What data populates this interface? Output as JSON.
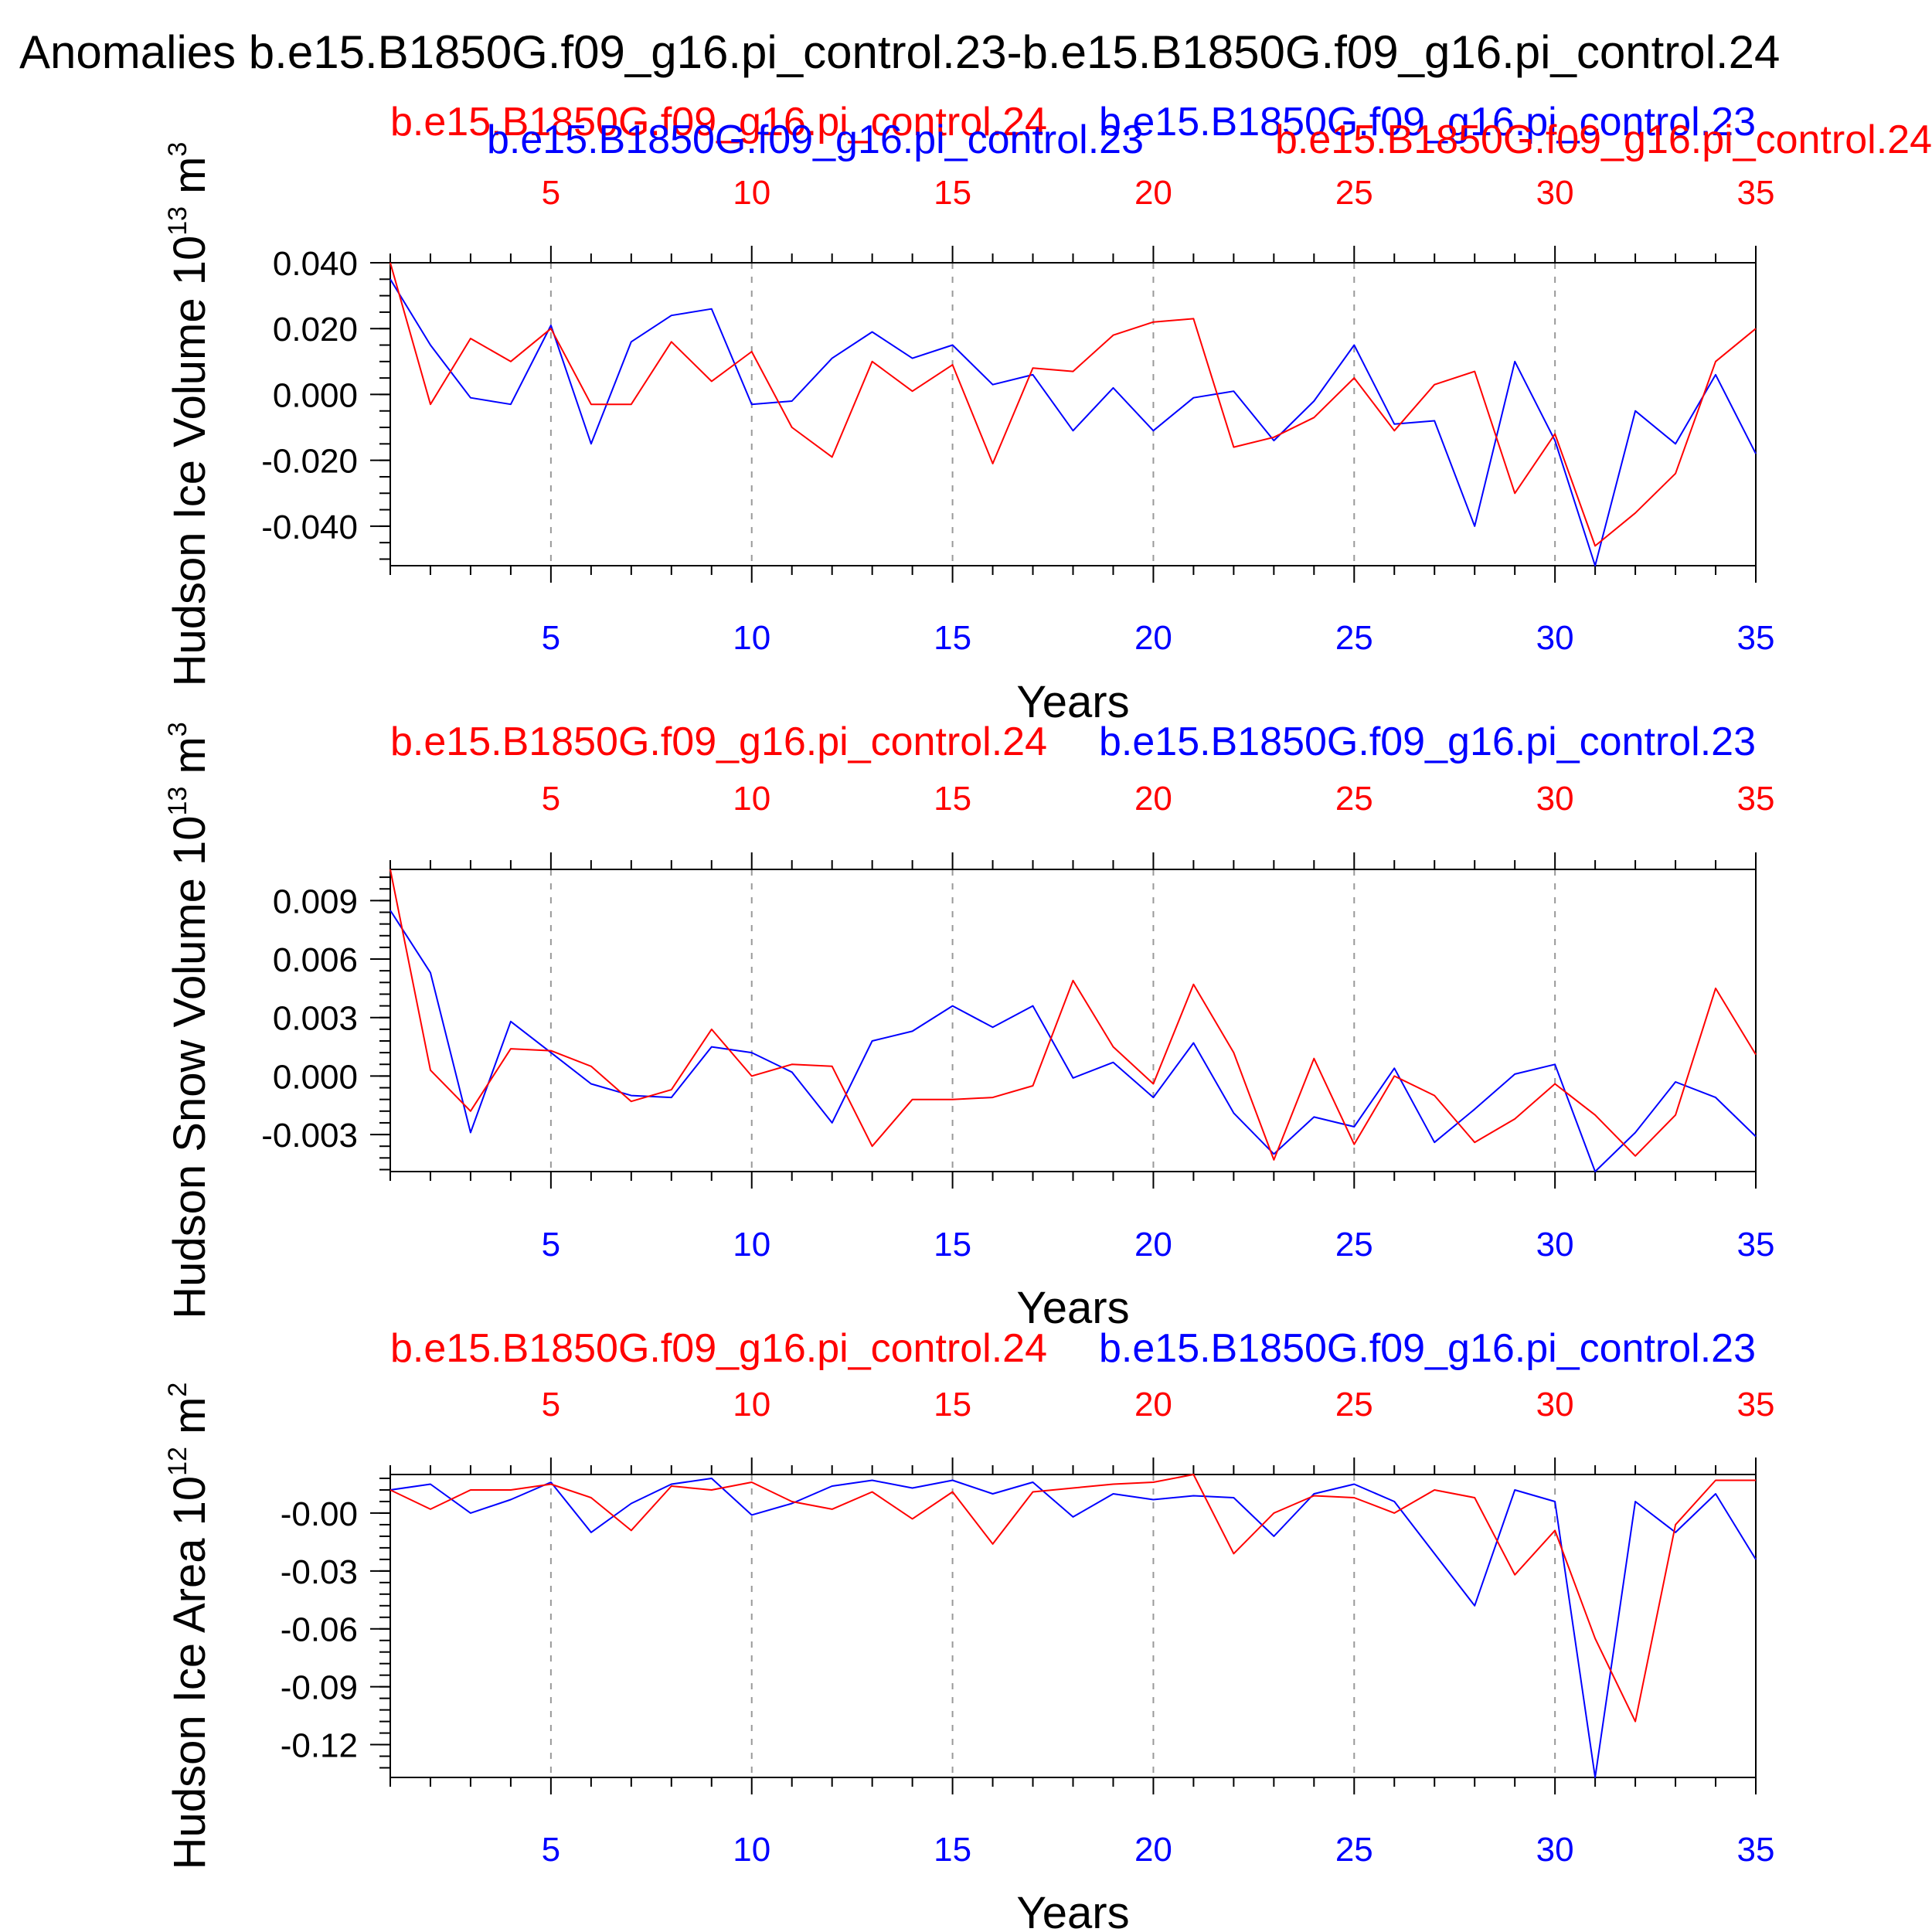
{
  "title": "Anomalies b.e15.B1850G.f09_g16.pi_control.23-b.e15.B1850G.f09_g16.pi_control.24",
  "colors": {
    "run23": "#0000ff",
    "run24": "#ff0000",
    "axis": "#000000",
    "grid": "#999999"
  },
  "chart_data": [
    {
      "type": "line",
      "ylabel": "Hudson Ice Volume 10",
      "ylabel_exp": "13",
      "ylabel_unit": " m",
      "ylabel_unit_exp": "3",
      "xlabel": "Years",
      "xlim": [
        1,
        35
      ],
      "ylim": [
        -0.052,
        0.04
      ],
      "yticks": [
        0.04,
        0.02,
        0.0,
        -0.02,
        -0.04
      ],
      "ytick_labels": [
        "0.040",
        "0.020",
        "0.000",
        "-0.020",
        "-0.040"
      ],
      "yminor_step": 0.005,
      "xticks": [
        5,
        10,
        15,
        20,
        25,
        30,
        35
      ],
      "xtick_labels": [
        "5",
        "10",
        "15",
        "20",
        "25",
        "30",
        "35"
      ],
      "top_labels": [
        "b.e15.B1850G.f09_g16.pi_control.24",
        "b.e15.B1850G.f09_g16.pi_control.23",
        "b.e15.B1850G.f09_g16.pi_control.23",
        "b.e15.B1850G.f09_g16.pi_control.24"
      ],
      "x": [
        1,
        2,
        3,
        4,
        5,
        6,
        7,
        8,
        9,
        10,
        11,
        12,
        13,
        14,
        15,
        16,
        17,
        18,
        19,
        20,
        21,
        22,
        23,
        24,
        25,
        26,
        27,
        28,
        29,
        30,
        31,
        32,
        33,
        34,
        35
      ],
      "series": [
        {
          "name": "b.e15.B1850G.f09_g16.pi_control.23",
          "color": "#0000ff",
          "values": [
            0.035,
            0.015,
            -0.001,
            -0.003,
            0.021,
            -0.015,
            0.016,
            0.024,
            0.026,
            -0.003,
            -0.002,
            0.011,
            0.019,
            0.011,
            0.015,
            0.003,
            0.006,
            -0.011,
            0.002,
            -0.011,
            -0.001,
            0.001,
            -0.014,
            -0.002,
            0.015,
            -0.009,
            -0.008,
            -0.04,
            0.01,
            -0.014,
            -0.052,
            -0.005,
            -0.015,
            0.006,
            -0.018
          ]
        },
        {
          "name": "b.e15.B1850G.f09_g16.pi_control.24",
          "color": "#ff0000",
          "values": [
            0.04,
            -0.003,
            0.017,
            0.01,
            0.02,
            -0.003,
            -0.003,
            0.016,
            0.004,
            0.013,
            -0.01,
            -0.019,
            0.01,
            0.001,
            0.009,
            -0.021,
            0.008,
            0.007,
            0.018,
            0.022,
            0.023,
            -0.016,
            -0.013,
            -0.007,
            0.005,
            -0.011,
            0.003,
            0.007,
            -0.03,
            -0.012,
            -0.046,
            -0.036,
            -0.024,
            0.01,
            0.02
          ]
        }
      ]
    },
    {
      "type": "line",
      "ylabel": "Hudson Snow Volume 10",
      "ylabel_exp": "13",
      "ylabel_unit": " m",
      "ylabel_unit_exp": "3",
      "xlabel": "Years",
      "xlim": [
        1,
        35
      ],
      "ylim": [
        -0.0049,
        0.0106
      ],
      "yticks": [
        0.009,
        0.006,
        0.003,
        0.0,
        -0.003
      ],
      "ytick_labels": [
        "0.009",
        "0.006",
        "0.003",
        "0.000",
        "-0.003"
      ],
      "yminor_step": 0.0006,
      "xticks": [
        5,
        10,
        15,
        20,
        25,
        30,
        35
      ],
      "xtick_labels": [
        "5",
        "10",
        "15",
        "20",
        "25",
        "30",
        "35"
      ],
      "top_labels": [
        "b.e15.B1850G.f09_g16.pi_control.24",
        "b.e15.B1850G.f09_g16.pi_control.23"
      ],
      "x": [
        1,
        2,
        3,
        4,
        5,
        6,
        7,
        8,
        9,
        10,
        11,
        12,
        13,
        14,
        15,
        16,
        17,
        18,
        19,
        20,
        21,
        22,
        23,
        24,
        25,
        26,
        27,
        28,
        29,
        30,
        31,
        32,
        33,
        34,
        35
      ],
      "series": [
        {
          "name": "b.e15.B1850G.f09_g16.pi_control.23",
          "color": "#0000ff",
          "values": [
            0.0085,
            0.0053,
            -0.0029,
            0.0028,
            0.0012,
            -0.0004,
            -0.001,
            -0.0011,
            0.0015,
            0.0012,
            0.0002,
            -0.0024,
            0.0018,
            0.0023,
            0.0036,
            0.0025,
            0.0036,
            -0.0001,
            0.0007,
            -0.0011,
            0.0017,
            -0.0019,
            -0.004,
            -0.0021,
            -0.0026,
            0.0004,
            -0.0034,
            -0.0017,
            0.0001,
            0.0006,
            -0.0049,
            -0.0029,
            -0.0003,
            -0.0011,
            -0.0031
          ]
        },
        {
          "name": "b.e15.B1850G.f09_g16.pi_control.24",
          "color": "#ff0000",
          "values": [
            0.0106,
            0.0003,
            -0.0018,
            0.0014,
            0.0013,
            0.0005,
            -0.0013,
            -0.0007,
            0.0024,
            0.0,
            0.0006,
            0.0005,
            -0.0036,
            -0.0012,
            -0.0012,
            -0.0011,
            -0.0005,
            0.0049,
            0.0015,
            -0.0004,
            0.0047,
            0.0012,
            -0.0043,
            0.0009,
            -0.0035,
            0.0,
            -0.001,
            -0.0034,
            -0.0022,
            -0.0004,
            -0.002,
            -0.0041,
            -0.002,
            0.0045,
            0.0011
          ]
        }
      ]
    },
    {
      "type": "line",
      "ylabel": "Hudson Ice Area 10",
      "ylabel_exp": "12",
      "ylabel_unit": " m",
      "ylabel_unit_exp": "2",
      "xlabel": "Years",
      "xlim": [
        1,
        35
      ],
      "ylim": [
        -0.137,
        0.02
      ],
      "yticks": [
        0.0,
        -0.03,
        -0.06,
        -0.09,
        -0.12
      ],
      "ytick_labels": [
        "-0.00",
        "-0.03",
        "-0.06",
        "-0.09",
        "-0.12"
      ],
      "yminor_step": 0.006,
      "xticks": [
        5,
        10,
        15,
        20,
        25,
        30,
        35
      ],
      "xtick_labels": [
        "5",
        "10",
        "15",
        "20",
        "25",
        "30",
        "35"
      ],
      "top_labels": [
        "b.e15.B1850G.f09_g16.pi_control.24",
        "b.e15.B1850G.f09_g16.pi_control.23"
      ],
      "x": [
        1,
        2,
        3,
        4,
        5,
        6,
        7,
        8,
        9,
        10,
        11,
        12,
        13,
        14,
        15,
        16,
        17,
        18,
        19,
        20,
        21,
        22,
        23,
        24,
        25,
        26,
        27,
        28,
        29,
        30,
        31,
        32,
        33,
        34,
        35
      ],
      "series": [
        {
          "name": "b.e15.B1850G.f09_g16.pi_control.23",
          "color": "#0000ff",
          "values": [
            0.012,
            0.015,
            0.0,
            0.007,
            0.016,
            -0.01,
            0.005,
            0.015,
            0.018,
            -0.001,
            0.005,
            0.014,
            0.017,
            0.013,
            0.017,
            0.01,
            0.016,
            -0.002,
            0.01,
            0.007,
            0.009,
            0.008,
            -0.012,
            0.01,
            0.015,
            0.006,
            -0.021,
            -0.048,
            0.012,
            0.006,
            -0.137,
            0.006,
            -0.01,
            0.01,
            -0.024
          ]
        },
        {
          "name": "b.e15.B1850G.f09_g16.pi_control.24",
          "color": "#ff0000",
          "values": [
            0.012,
            0.002,
            0.012,
            0.012,
            0.015,
            0.008,
            -0.009,
            0.014,
            0.012,
            0.016,
            0.006,
            0.002,
            0.011,
            -0.003,
            0.011,
            -0.016,
            0.011,
            0.013,
            0.015,
            0.016,
            0.02,
            -0.021,
            0.0,
            0.009,
            0.008,
            0.0,
            0.012,
            0.008,
            -0.032,
            -0.009,
            -0.065,
            -0.108,
            -0.006,
            0.017,
            0.017
          ]
        }
      ]
    }
  ]
}
